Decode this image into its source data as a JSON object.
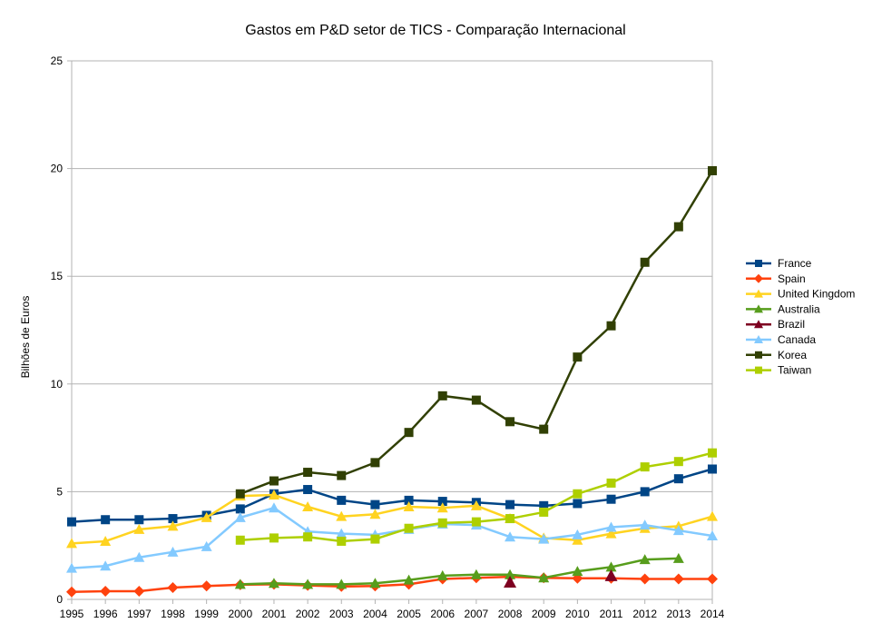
{
  "chart_data": {
    "type": "line",
    "title": "Gastos em P&D setor de TICS - Comparação Internacional",
    "ylabel": "Bilhões de Euros",
    "xlabel": "",
    "x": [
      "1995",
      "1996",
      "1997",
      "1998",
      "1999",
      "2000",
      "2001",
      "2002",
      "2003",
      "2004",
      "2005",
      "2006",
      "2007",
      "2008",
      "2009",
      "2010",
      "2011",
      "2012",
      "2013",
      "2014"
    ],
    "ylim": [
      0,
      25
    ],
    "yticks": [
      "0",
      "5",
      "10",
      "15",
      "20",
      "25"
    ],
    "grid": "horizontal",
    "legend": "right",
    "series": [
      {
        "name": "France",
        "color": "#004586",
        "marker": "square",
        "values": [
          3.6,
          3.7,
          3.7,
          3.75,
          3.9,
          4.2,
          4.9,
          5.1,
          4.6,
          4.4,
          4.6,
          4.55,
          4.5,
          4.4,
          4.35,
          4.45,
          4.65,
          5.0,
          5.6,
          6.05
        ]
      },
      {
        "name": "Spain",
        "color": "#ff420e",
        "marker": "diamond",
        "values": [
          0.35,
          0.38,
          0.38,
          0.55,
          0.62,
          0.68,
          0.7,
          0.65,
          0.6,
          0.62,
          0.7,
          0.95,
          1.0,
          1.05,
          1.0,
          0.98,
          0.98,
          0.95,
          0.95,
          0.95
        ]
      },
      {
        "name": "United Kingdom",
        "color": "#ffd320",
        "marker": "triangle",
        "values": [
          2.6,
          2.7,
          3.25,
          3.4,
          3.8,
          4.8,
          4.85,
          4.3,
          3.85,
          3.95,
          4.3,
          4.25,
          4.35,
          3.75,
          2.85,
          2.75,
          3.05,
          3.3,
          3.4,
          3.85
        ]
      },
      {
        "name": "Australia",
        "color": "#579d1c",
        "marker": "triangle",
        "values": [
          null,
          null,
          null,
          null,
          null,
          0.7,
          0.75,
          0.7,
          0.7,
          0.75,
          0.9,
          1.1,
          1.15,
          1.15,
          1.0,
          1.3,
          1.5,
          1.85,
          1.9,
          null
        ]
      },
      {
        "name": "Brazil",
        "color": "#7e0021",
        "marker": "triangle",
        "values": [
          null,
          null,
          null,
          null,
          null,
          null,
          null,
          null,
          null,
          null,
          null,
          null,
          null,
          0.8,
          null,
          null,
          1.1,
          null,
          null,
          null
        ]
      },
      {
        "name": "Canada",
        "color": "#83caff",
        "marker": "triangle",
        "values": [
          1.45,
          1.55,
          1.95,
          2.2,
          2.45,
          3.8,
          4.25,
          3.15,
          3.05,
          3.0,
          3.25,
          3.5,
          3.45,
          2.9,
          2.8,
          3.0,
          3.35,
          3.45,
          3.2,
          2.95
        ]
      },
      {
        "name": "Korea",
        "color": "#314004",
        "marker": "square",
        "values": [
          null,
          null,
          null,
          null,
          null,
          4.9,
          5.5,
          5.9,
          5.75,
          6.35,
          7.75,
          9.45,
          9.25,
          8.25,
          7.9,
          11.25,
          12.7,
          15.65,
          17.3,
          19.9
        ]
      },
      {
        "name": "Taiwan",
        "color": "#aecf00",
        "marker": "square",
        "values": [
          null,
          null,
          null,
          null,
          null,
          2.75,
          2.85,
          2.9,
          2.7,
          2.8,
          3.3,
          3.55,
          3.6,
          3.75,
          4.05,
          4.9,
          5.4,
          6.15,
          6.4,
          6.8
        ]
      }
    ]
  }
}
